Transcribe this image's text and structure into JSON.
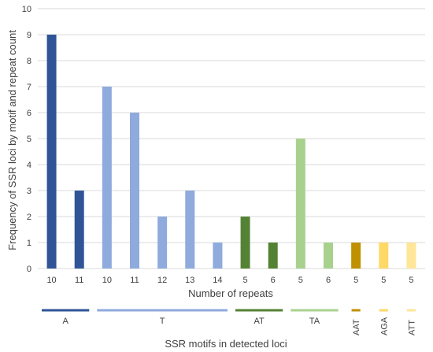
{
  "chart_data": {
    "type": "bar",
    "categories": [
      "10",
      "11",
      "10",
      "11",
      "12",
      "13",
      "14",
      "5",
      "6",
      "5",
      "6",
      "5",
      "5",
      "5"
    ],
    "values": [
      9,
      3,
      7,
      6,
      2,
      3,
      1,
      2,
      1,
      5,
      1,
      1,
      1,
      1
    ],
    "bar_groups": [
      0,
      0,
      1,
      1,
      1,
      1,
      1,
      2,
      2,
      3,
      3,
      4,
      5,
      6
    ],
    "groups": [
      {
        "label": "A",
        "color": "#2f5597"
      },
      {
        "label": "T",
        "color": "#8faadc"
      },
      {
        "label": "AT",
        "color": "#548235"
      },
      {
        "label": "TA",
        "color": "#a9d18e"
      },
      {
        "label": "AAT",
        "color": "#bf9000"
      },
      {
        "label": "AGA",
        "color": "#ffd966"
      },
      {
        "label": "ATT",
        "color": "#ffe699"
      }
    ],
    "xlabel": "Number of repeats",
    "ylabel": "Frequency of SSR loci by motif and repeat count",
    "group_axis_label": "SSR motifs in detected loci",
    "ylim": [
      0,
      10
    ],
    "yticks": [
      0,
      1,
      2,
      3,
      4,
      5,
      6,
      7,
      8,
      9,
      10
    ],
    "grid": true,
    "legend": "none"
  }
}
